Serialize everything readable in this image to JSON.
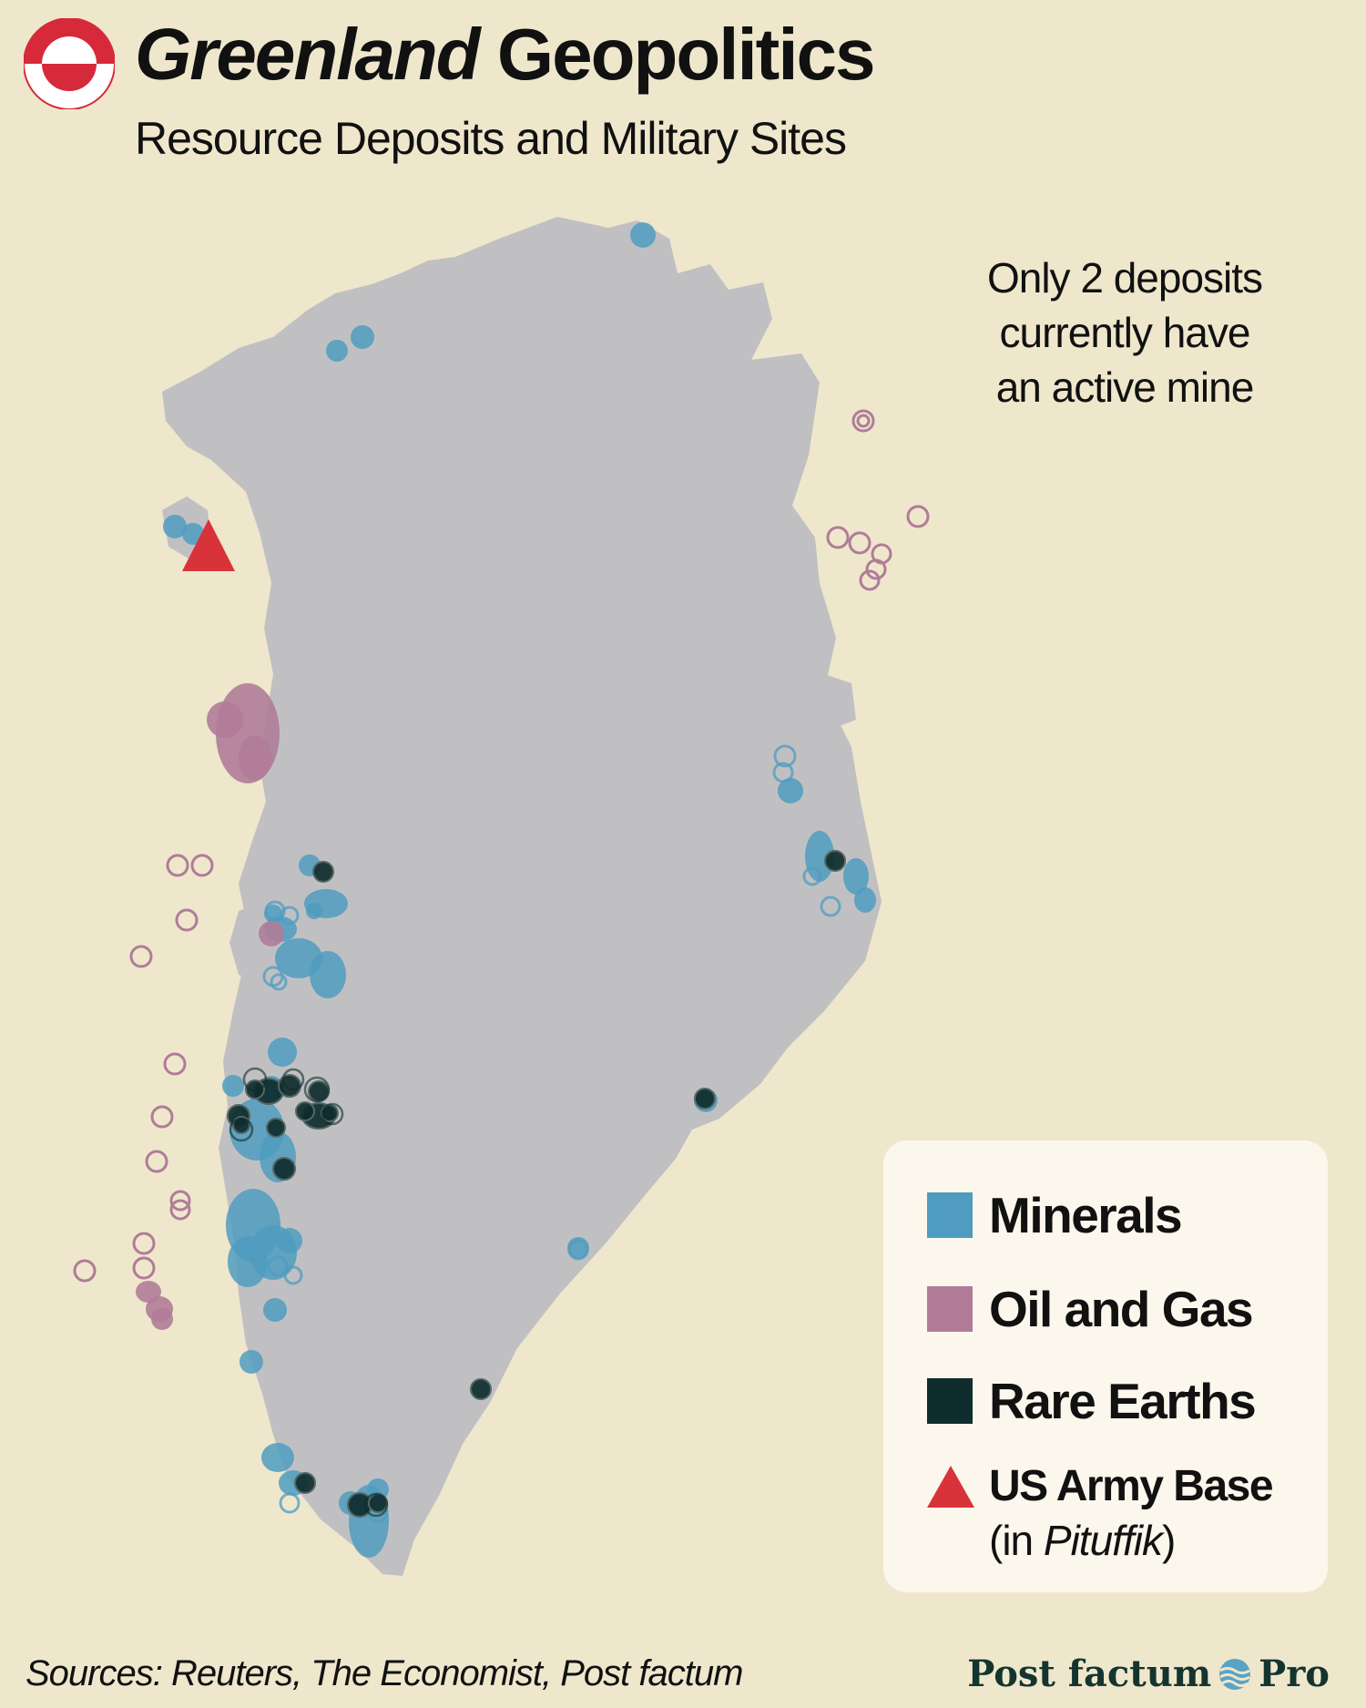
{
  "header": {
    "title_part1": "Greenland",
    "title_part2": "Geopolitics",
    "subtitle": "Resource Deposits and Military Sites"
  },
  "annotation": {
    "line1": "Only 2 deposits",
    "line2": "currently have",
    "line3": "an active mine"
  },
  "legend": {
    "minerals": "Minerals",
    "oil_gas": "Oil and Gas",
    "rare_earths": "Rare Earths",
    "base": "US Army Base",
    "base_note_prefix": "(in ",
    "base_note_place": "Pituffik",
    "base_note_suffix": ")"
  },
  "footer": {
    "sources": "Sources: Reuters, The Economist, Post factum",
    "brand_part1": "Post factum",
    "brand_part2": "Pro"
  },
  "colors": {
    "background": "#efe7cc",
    "land": "#c0c0c3",
    "minerals": "#4f9cc0",
    "oil_gas": "#b07c98",
    "rare_earths": "#0f2d2c",
    "base": "#d8333a",
    "flag_red": "#d62a3a"
  },
  "icons": {
    "flag": "greenland-flag-icon",
    "base": "red-triangle-icon",
    "brand": "wave-globe-icon"
  }
}
